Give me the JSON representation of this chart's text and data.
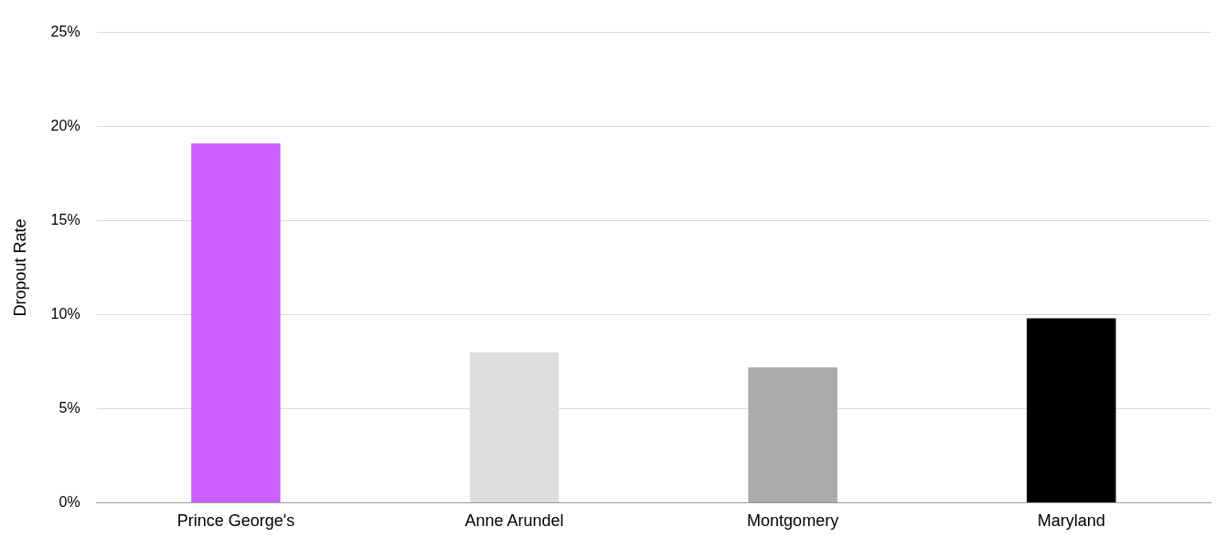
{
  "chart_data": {
    "type": "bar",
    "ylabel": "Dropout Rate",
    "categories": [
      "Prince George's",
      "Anne Arundel",
      "Montgomery",
      "Maryland"
    ],
    "values": [
      19.1,
      8.0,
      7.2,
      9.8
    ],
    "colors": [
      "#cc5fff",
      "#dddddd",
      "#aaaaaa",
      "#000000"
    ],
    "ylim": [
      0,
      25
    ],
    "yticks": [
      {
        "value": 0,
        "label": "0%"
      },
      {
        "value": 5,
        "label": "5%"
      },
      {
        "value": 10,
        "label": "10%"
      },
      {
        "value": 15,
        "label": "15%"
      },
      {
        "value": 20,
        "label": "20%"
      },
      {
        "value": 25,
        "label": "25%"
      }
    ],
    "grid": "y",
    "legend": false
  }
}
